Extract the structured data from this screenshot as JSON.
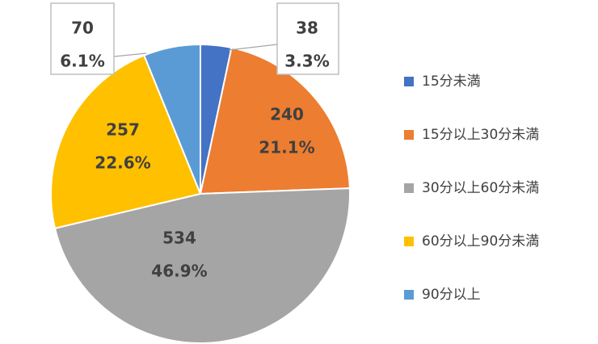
{
  "chart_data": {
    "type": "pie",
    "title": "",
    "start_angle_deg": 0,
    "direction": "clockwise",
    "legend_position": "right",
    "slices": [
      {
        "name": "15分未満",
        "value": 38,
        "percent_label": "3.3%",
        "color": "#4472C4"
      },
      {
        "name": "15分以上30分未満",
        "value": 240,
        "percent_label": "21.1%",
        "color": "#ED7D31"
      },
      {
        "name": "30分以上60分未満",
        "value": 534,
        "percent_label": "46.9%",
        "color": "#A5A5A5"
      },
      {
        "name": "60分以上90分未満",
        "value": 257,
        "percent_label": "22.6%",
        "color": "#FFC000"
      },
      {
        "name": "90分以上",
        "value": 70,
        "percent_label": "6.1%",
        "color": "#5B9BD5"
      }
    ]
  }
}
